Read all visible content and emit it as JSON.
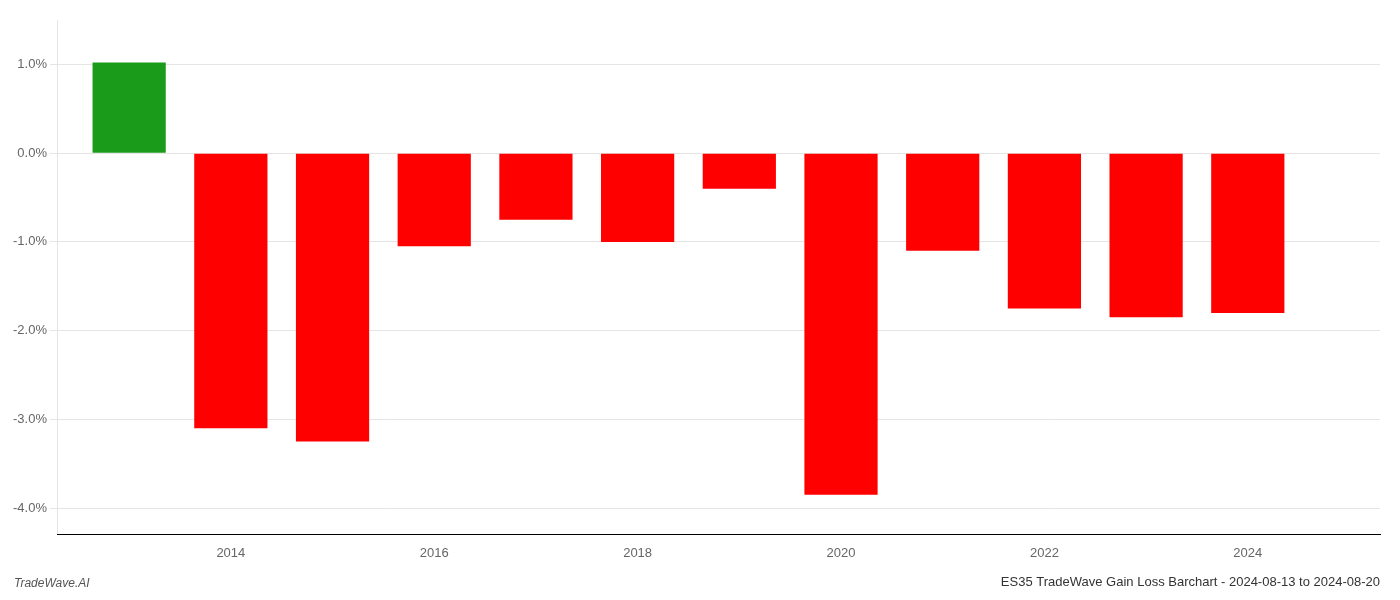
{
  "chart_data": {
    "type": "bar",
    "title": "ES35 TradeWave Gain Loss Barchart - 2024-08-13 to 2024-08-20",
    "annotations": [
      "TradeWave.AI"
    ],
    "x": [
      2013,
      2014,
      2015,
      2016,
      2017,
      2018,
      2019,
      2020,
      2021,
      2022,
      2023,
      2024
    ],
    "values": [
      1.02,
      -3.1,
      -3.25,
      -1.05,
      -0.75,
      -1.0,
      -0.4,
      -3.85,
      -1.1,
      -1.75,
      -1.85,
      -1.8
    ],
    "colors": [
      "#1a9c1a",
      "#ff0000",
      "#ff0000",
      "#ff0000",
      "#ff0000",
      "#ff0000",
      "#ff0000",
      "#ff0000",
      "#ff0000",
      "#ff0000",
      "#ff0000",
      "#ff0000"
    ],
    "xlim": [
      2012.3,
      2025.3
    ],
    "xticks": [
      2014,
      2016,
      2018,
      2020,
      2022,
      2024
    ],
    "ylim": [
      -4.3,
      1.5
    ],
    "yticks": [
      {
        "value": -4.0,
        "label": "-4.0%"
      },
      {
        "value": -3.0,
        "label": "-3.0%"
      },
      {
        "value": -2.0,
        "label": "-2.0%"
      },
      {
        "value": -1.0,
        "label": "-1.0%"
      },
      {
        "value": 0.0,
        "label": "0.0%"
      },
      {
        "value": 1.0,
        "label": "1.0%"
      }
    ],
    "grid": "y"
  }
}
